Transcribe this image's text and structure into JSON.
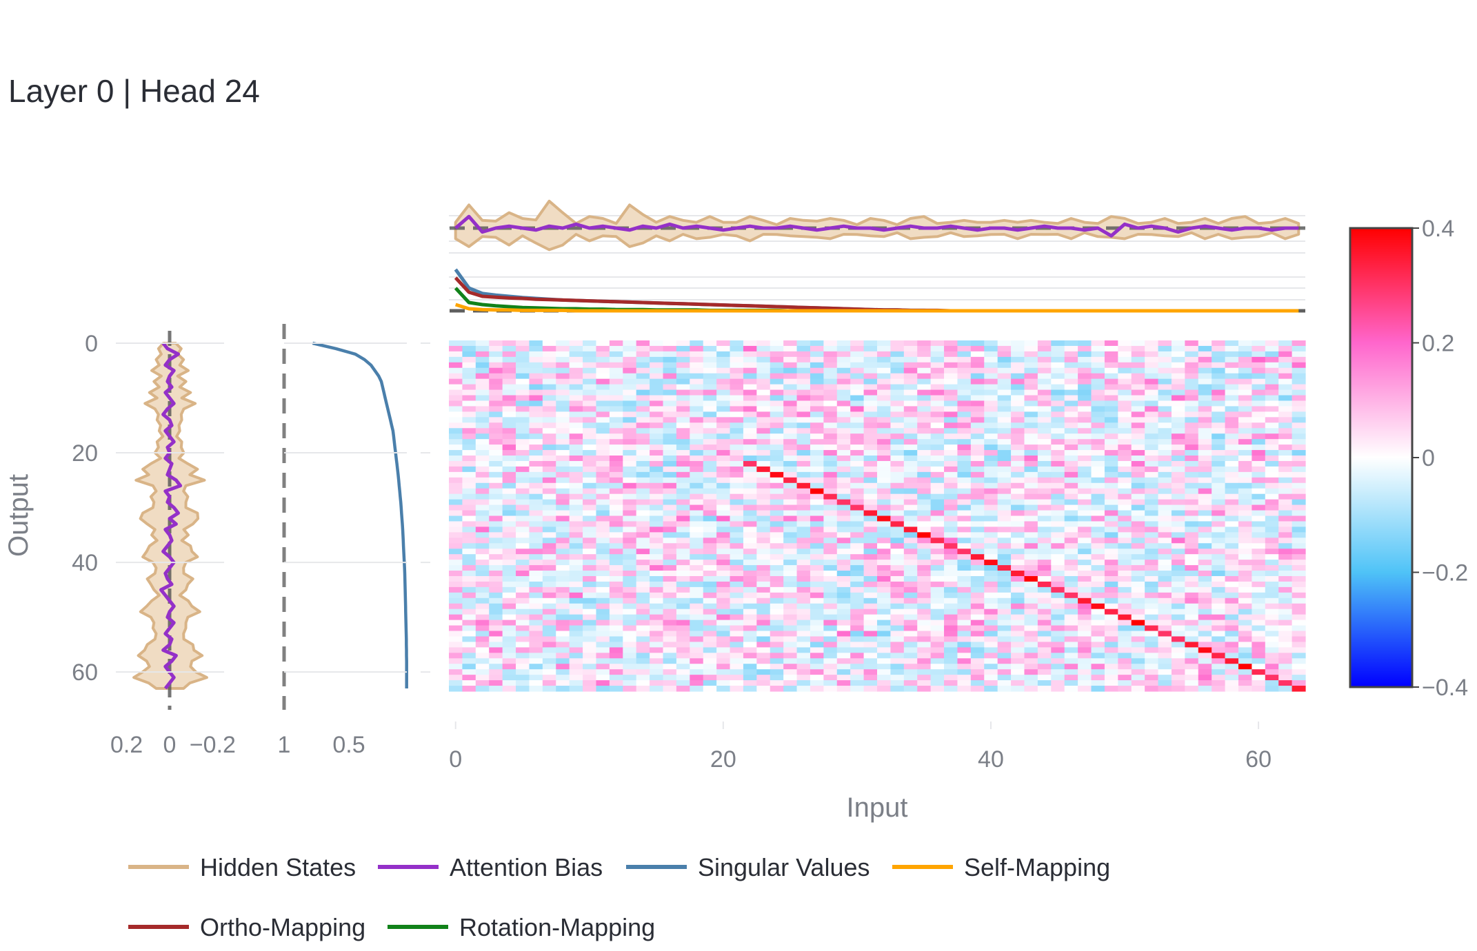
{
  "title": "Layer 0 | Head 24",
  "colors": {
    "hidden_states": "#d9b487",
    "hidden_states_fill": "#f0dcc3",
    "attention_bias": "#9430c8",
    "singular_values": "#4a7fab",
    "self_mapping": "#ffa500",
    "ortho_mapping": "#a52a2a",
    "rotation_mapping": "#11821a",
    "grid": "#e6e7ea",
    "zero_line": "#808080"
  },
  "chart_data": [
    {
      "type": "heatmap",
      "name": "Weight heatmap",
      "rows": 64,
      "cols": 64,
      "xlabel": "Input",
      "ylabel": "Output",
      "x_ticks": [
        "0",
        "20",
        "40",
        "60"
      ],
      "y_ticks": [
        "0",
        "20",
        "40",
        "60"
      ],
      "colorscale": [
        "#0000ff",
        "#4fc3f7",
        "#ffffff",
        "#ff66cc",
        "#ff0000"
      ],
      "zlim": [
        -0.4,
        0.4
      ],
      "colorbar_ticks": [
        "0.4",
        "0.2",
        "0",
        "−0.2",
        "−0.4"
      ],
      "diagonal": {
        "start": [
          22,
          22
        ],
        "end": [
          63,
          63
        ],
        "values_approx": [
          0.3,
          0.35,
          0.38,
          0.33,
          0.35,
          0.4,
          0.32,
          0.3
        ]
      },
      "background_range": [
        -0.15,
        0.2
      ]
    },
    {
      "type": "area",
      "name": "Left marginal",
      "orientation": "vertical",
      "x_ticks": [
        "0.2",
        "0",
        "−0.2"
      ],
      "xlim": [
        0.25,
        -0.25
      ],
      "series": [
        {
          "name": "Hidden States",
          "band_halfwidth": [
            0.03,
            0.05,
            0.04,
            0.06,
            0.05,
            0.08,
            0.04,
            0.07,
            0.05,
            0.09,
            0.06,
            0.11,
            0.07,
            0.05,
            0.06,
            0.04,
            0.05,
            0.03,
            0.06,
            0.05,
            0.07,
            0.04,
            0.09,
            0.12,
            0.1,
            0.15,
            0.08,
            0.06,
            0.09,
            0.07,
            0.08,
            0.12,
            0.14,
            0.1,
            0.07,
            0.08,
            0.06,
            0.09,
            0.11,
            0.12,
            0.08,
            0.06,
            0.07,
            0.1,
            0.09,
            0.07,
            0.05,
            0.08,
            0.11,
            0.13,
            0.09,
            0.07,
            0.08,
            0.06,
            0.07,
            0.1,
            0.12,
            0.14,
            0.11,
            0.09,
            0.13,
            0.16,
            0.1,
            0.06
          ]
        },
        {
          "name": "Attention Bias",
          "values": [
            0.03,
            0.01,
            -0.04,
            0.0,
            0.02,
            -0.02,
            0.0,
            0.01,
            -0.01,
            0.02,
            0.0,
            -0.02,
            0.01,
            0.03,
            0.0,
            -0.01,
            0.02,
            0.0,
            -0.02,
            0.01,
            0.0,
            0.02,
            -0.01,
            0.0,
            0.01,
            -0.03,
            -0.05,
            0.02,
            0.0,
            0.01,
            -0.02,
            -0.04,
            0.0,
            -0.03,
            0.02,
            0.0,
            -0.01,
            0.01,
            0.03,
            0.0,
            -0.02,
            0.0,
            0.02,
            0.01,
            -0.01,
            0.04,
            0.02,
            0.0,
            -0.02,
            0.0,
            0.01,
            -0.02,
            0.0,
            0.02,
            -0.01,
            0.0,
            0.03,
            -0.03,
            -0.01,
            0.02,
            0.0,
            -0.02,
            0.0,
            0.02
          ]
        }
      ]
    },
    {
      "type": "line",
      "name": "Singular values",
      "orientation": "vertical",
      "x_ticks": [
        "1",
        "0.5"
      ],
      "xlim": [
        1.0,
        0.0
      ],
      "series": [
        {
          "name": "Singular Values",
          "values": [
            0.78,
            0.6,
            0.45,
            0.38,
            0.33,
            0.3,
            0.27,
            0.25,
            0.24,
            0.23,
            0.22,
            0.21,
            0.2,
            0.19,
            0.18,
            0.17,
            0.16,
            0.155,
            0.15,
            0.145,
            0.14,
            0.135,
            0.13,
            0.125,
            0.12,
            0.116,
            0.112,
            0.108,
            0.104,
            0.1,
            0.097,
            0.094,
            0.091,
            0.088,
            0.085,
            0.083,
            0.081,
            0.079,
            0.077,
            0.075,
            0.073,
            0.071,
            0.069,
            0.068,
            0.067,
            0.066,
            0.065,
            0.064,
            0.063,
            0.062,
            0.061,
            0.06,
            0.059,
            0.058,
            0.057,
            0.057,
            0.056,
            0.056,
            0.055,
            0.055,
            0.055,
            0.055,
            0.055,
            0.055
          ]
        }
      ]
    },
    {
      "type": "area",
      "name": "Top marginal",
      "series": [
        {
          "name": "Hidden States",
          "band_halfwidth": [
            0.05,
            0.12,
            0.04,
            0.06,
            0.08,
            0.05,
            0.07,
            0.14,
            0.08,
            0.04,
            0.06,
            0.05,
            0.04,
            0.12,
            0.07,
            0.05,
            0.06,
            0.04,
            0.05,
            0.06,
            0.03,
            0.05,
            0.06,
            0.04,
            0.03,
            0.05,
            0.04,
            0.06,
            0.05,
            0.04,
            0.03,
            0.05,
            0.04,
            0.03,
            0.05,
            0.06,
            0.04,
            0.03,
            0.04,
            0.05,
            0.03,
            0.04,
            0.05,
            0.04,
            0.03,
            0.04,
            0.05,
            0.03,
            0.04,
            0.06,
            0.05,
            0.04,
            0.03,
            0.05,
            0.04,
            0.03,
            0.05,
            0.04,
            0.05,
            0.06,
            0.04,
            0.03,
            0.05,
            0.04
          ]
        },
        {
          "name": "Attention Bias",
          "values": [
            0.0,
            0.06,
            -0.02,
            0.0,
            0.01,
            0.0,
            -0.01,
            0.01,
            0.0,
            0.02,
            0.0,
            0.01,
            0.0,
            -0.01,
            0.01,
            0.0,
            0.02,
            0.0,
            0.01,
            0.0,
            -0.01,
            0.0,
            0.01,
            0.0,
            0.0,
            0.01,
            0.0,
            -0.01,
            0.0,
            0.01,
            0.0,
            0.0,
            -0.01,
            0.0,
            0.01,
            0.0,
            0.0,
            0.01,
            0.0,
            -0.01,
            0.0,
            0.0,
            -0.01,
            0.0,
            0.01,
            0.0,
            0.0,
            -0.01,
            0.0,
            -0.04,
            0.02,
            0.0,
            0.01,
            0.0,
            -0.02,
            0.0,
            0.01,
            0.0,
            -0.01,
            0.0,
            0.0,
            -0.01,
            0.0,
            0.0
          ]
        }
      ]
    },
    {
      "type": "line",
      "name": "Mapping scores",
      "series": [
        {
          "name": "Singular Values",
          "values": [
            1.0,
            0.55,
            0.42,
            0.38,
            0.35,
            0.32,
            0.3,
            0.28,
            0.26,
            0.25,
            0.24,
            0.23,
            0.22,
            0.21,
            0.2,
            0.19,
            0.18,
            0.17,
            0.16,
            0.15,
            0.14,
            0.13,
            0.12,
            0.11,
            0.1,
            0.09,
            0.08,
            0.07,
            0.06,
            0.05,
            0.04,
            0.03,
            0.02,
            0.02,
            0.01,
            0.01,
            0.0,
            0.0,
            0.0,
            0.0,
            0.0,
            0.0,
            0.0,
            0.0,
            0.0,
            0.0,
            0.0,
            0.0,
            0.0,
            0.0,
            0.0,
            0.0,
            0.0,
            0.0,
            0.0,
            0.0,
            0.0,
            0.0,
            0.0,
            0.0,
            0.0,
            0.0,
            0.0,
            0.0
          ]
        },
        {
          "name": "Ortho-Mapping",
          "values": [
            0.8,
            0.45,
            0.35,
            0.33,
            0.31,
            0.3,
            0.28,
            0.27,
            0.26,
            0.25,
            0.24,
            0.23,
            0.22,
            0.21,
            0.2,
            0.19,
            0.18,
            0.17,
            0.16,
            0.15,
            0.14,
            0.13,
            0.12,
            0.11,
            0.1,
            0.09,
            0.08,
            0.07,
            0.06,
            0.05,
            0.04,
            0.03,
            0.02,
            0.02,
            0.01,
            0.01,
            0.01,
            0.0,
            0.0,
            0.0,
            0.0,
            0.0,
            0.0,
            0.0,
            0.0,
            0.0,
            0.0,
            0.0,
            0.0,
            0.0,
            0.0,
            0.0,
            0.0,
            0.0,
            0.0,
            0.0,
            0.0,
            0.0,
            0.0,
            0.0,
            0.0,
            0.0,
            0.0,
            0.0
          ]
        },
        {
          "name": "Rotation-Mapping",
          "values": [
            0.55,
            0.2,
            0.15,
            0.12,
            0.1,
            0.08,
            0.07,
            0.06,
            0.05,
            0.05,
            0.04,
            0.04,
            0.03,
            0.03,
            0.03,
            0.02,
            0.02,
            0.02,
            0.02,
            0.01,
            0.01,
            0.01,
            0.01,
            0.01,
            0.01,
            0.0,
            0.0,
            0.0,
            0.0,
            0.0,
            0.0,
            0.0,
            0.0,
            0.0,
            0.0,
            0.0,
            0.0,
            0.0,
            0.0,
            0.0,
            0.0,
            0.0,
            0.0,
            0.0,
            0.0,
            0.0,
            0.0,
            0.0,
            0.0,
            0.0,
            0.0,
            0.0,
            0.0,
            0.0,
            0.0,
            0.0,
            0.0,
            0.0,
            0.0,
            0.0,
            0.0,
            0.0,
            0.0,
            0.0
          ]
        },
        {
          "name": "Self-Mapping",
          "values": [
            0.15,
            0.05,
            0.03,
            0.02,
            0.02,
            0.01,
            0.01,
            0.01,
            0.01,
            0.0,
            0.0,
            0.0,
            0.0,
            0.0,
            0.0,
            0.0,
            0.0,
            0.0,
            0.0,
            0.0,
            0.0,
            0.0,
            0.0,
            0.0,
            0.0,
            0.0,
            0.0,
            0.0,
            0.0,
            0.0,
            0.0,
            0.0,
            0.0,
            0.0,
            0.0,
            0.0,
            0.0,
            0.0,
            0.0,
            0.0,
            0.0,
            0.0,
            0.0,
            0.0,
            0.0,
            0.0,
            0.0,
            0.0,
            0.0,
            0.0,
            0.0,
            0.0,
            0.0,
            0.0,
            0.0,
            0.0,
            0.0,
            0.0,
            0.0,
            0.0,
            0.0,
            0.0,
            0.0,
            0.0
          ]
        }
      ]
    }
  ],
  "legend": {
    "placement": "bottom",
    "items": [
      {
        "label": "Hidden States",
        "color": "#d9b487"
      },
      {
        "label": "Attention Bias",
        "color": "#9430c8"
      },
      {
        "label": "Singular Values",
        "color": "#4a7fab"
      },
      {
        "label": "Self-Mapping",
        "color": "#ffa500"
      },
      {
        "label": "Ortho-Mapping",
        "color": "#a52a2a"
      },
      {
        "label": "Rotation-Mapping",
        "color": "#11821a"
      }
    ]
  }
}
